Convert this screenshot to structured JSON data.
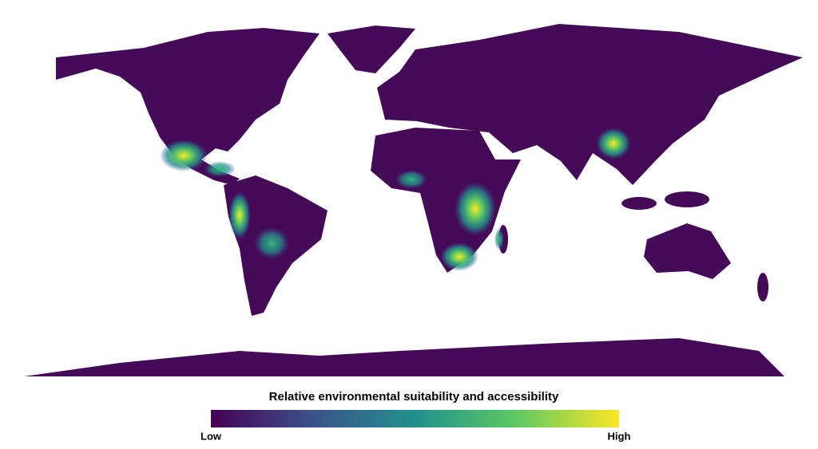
{
  "legend": {
    "title": "Relative environmental suitability and accessibility",
    "low": "Low",
    "high": "High"
  }
}
